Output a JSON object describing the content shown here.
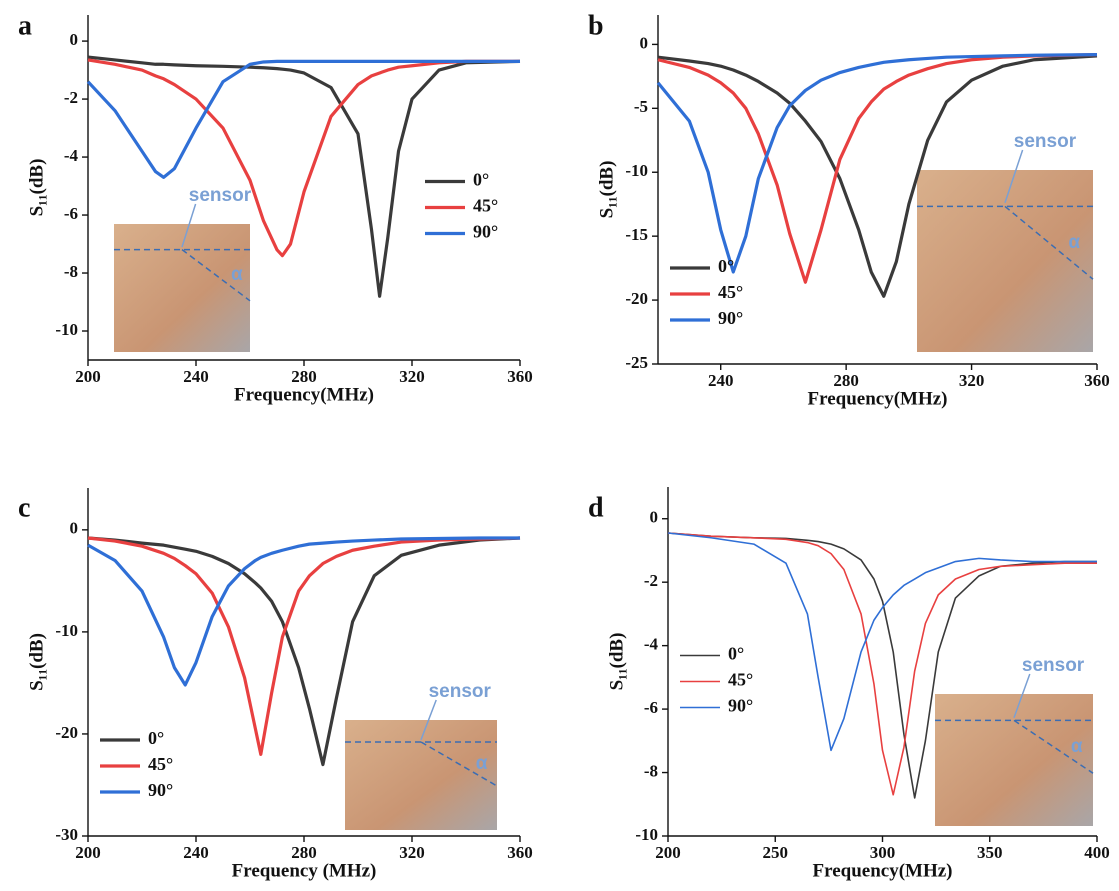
{
  "chart_data": [
    {
      "type": "line",
      "panel_label": "a",
      "x_label": "Frequency(MHz)",
      "y_label": "S₁₁(dB)",
      "legend": "center right",
      "annotations": [
        "sensor",
        "α"
      ],
      "xlim": [
        200,
        360
      ],
      "xticks": [
        200,
        240,
        280,
        320,
        360
      ],
      "ylim": [
        -11,
        0.9
      ],
      "yticks": [
        -10,
        -8,
        -6,
        -4,
        -2,
        0
      ],
      "x": [
        200,
        210,
        220,
        225,
        228,
        232,
        240,
        250,
        260,
        265,
        270,
        272,
        275,
        280,
        290,
        300,
        305,
        308,
        311,
        315,
        320,
        330,
        340,
        360
      ],
      "series": [
        {
          "name": "0°",
          "color": "#3a3a3a",
          "values": [
            -0.55,
            -0.65,
            -0.75,
            -0.8,
            -0.8,
            -0.82,
            -0.85,
            -0.87,
            -0.9,
            -0.92,
            -0.95,
            -0.97,
            -1.0,
            -1.1,
            -1.6,
            -3.2,
            -6.5,
            -8.8,
            -6.8,
            -3.8,
            -2.0,
            -1.0,
            -0.75,
            -0.7
          ]
        },
        {
          "name": "45°",
          "color": "#e84040",
          "values": [
            -0.65,
            -0.8,
            -1.0,
            -1.2,
            -1.3,
            -1.5,
            -2.0,
            -3.0,
            -4.8,
            -6.2,
            -7.2,
            -7.4,
            -7.0,
            -5.2,
            -2.6,
            -1.5,
            -1.2,
            -1.1,
            -1.0,
            -0.9,
            -0.85,
            -0.75,
            -0.7,
            -0.7
          ]
        },
        {
          "name": "90°",
          "color": "#2f6fd6",
          "values": [
            -1.4,
            -2.4,
            -3.8,
            -4.5,
            -4.7,
            -4.4,
            -3.0,
            -1.4,
            -0.8,
            -0.72,
            -0.7,
            -0.7,
            -0.7,
            -0.7,
            -0.7,
            -0.7,
            -0.7,
            -0.7,
            -0.7,
            -0.7,
            -0.7,
            -0.7,
            -0.7,
            -0.7
          ]
        }
      ]
    },
    {
      "type": "line",
      "panel_label": "b",
      "x_label": "Frequency(MHz)",
      "y_label": "S₁₁(dB)",
      "legend": "lower left",
      "annotations": [
        "sensor",
        "α"
      ],
      "xlim": [
        220,
        360
      ],
      "xticks": [
        240,
        280,
        320,
        360
      ],
      "ylim": [
        -25,
        2.3
      ],
      "yticks": [
        -25,
        -20,
        -15,
        -10,
        -5,
        0
      ],
      "x": [
        220,
        230,
        236,
        240,
        244,
        248,
        252,
        258,
        262,
        267,
        272,
        278,
        284,
        288,
        292,
        296,
        300,
        306,
        312,
        320,
        330,
        340,
        360
      ],
      "series": [
        {
          "name": "0°",
          "color": "#3a3a3a",
          "values": [
            -1.0,
            -1.3,
            -1.5,
            -1.7,
            -2.0,
            -2.4,
            -2.9,
            -3.8,
            -4.6,
            -6.0,
            -7.6,
            -10.5,
            -14.5,
            -17.8,
            -19.7,
            -17.0,
            -12.5,
            -7.5,
            -4.5,
            -2.8,
            -1.7,
            -1.2,
            -0.9
          ]
        },
        {
          "name": "45°",
          "color": "#e84040",
          "values": [
            -1.2,
            -1.8,
            -2.4,
            -3.0,
            -3.8,
            -5.0,
            -7.0,
            -11.0,
            -14.8,
            -18.6,
            -14.5,
            -9.0,
            -5.8,
            -4.5,
            -3.5,
            -2.9,
            -2.4,
            -1.9,
            -1.5,
            -1.2,
            -1.0,
            -0.9,
            -0.8
          ]
        },
        {
          "name": "90°",
          "color": "#2f6fd6",
          "values": [
            -3.0,
            -6.0,
            -10.0,
            -14.5,
            -17.8,
            -15.0,
            -10.5,
            -6.5,
            -4.8,
            -3.6,
            -2.8,
            -2.2,
            -1.8,
            -1.6,
            -1.4,
            -1.3,
            -1.2,
            -1.1,
            -1.0,
            -0.95,
            -0.9,
            -0.85,
            -0.8
          ]
        }
      ]
    },
    {
      "type": "line",
      "panel_label": "c",
      "x_label": "Frequency (MHz)",
      "y_label": "S₁₁(dB)",
      "legend": "lower left",
      "annotations": [
        "sensor",
        "α"
      ],
      "xlim": [
        200,
        360
      ],
      "xticks": [
        200,
        240,
        280,
        320,
        360
      ],
      "ylim": [
        -30,
        4.1
      ],
      "yticks": [
        -30,
        -20,
        -10,
        0
      ],
      "x": [
        200,
        210,
        220,
        228,
        232,
        236,
        240,
        246,
        252,
        258,
        262,
        264,
        268,
        272,
        278,
        282,
        287,
        292,
        298,
        306,
        316,
        330,
        345,
        360
      ],
      "series": [
        {
          "name": "0°",
          "color": "#3a3a3a",
          "values": [
            -0.8,
            -1.0,
            -1.3,
            -1.5,
            -1.7,
            -1.9,
            -2.1,
            -2.6,
            -3.3,
            -4.3,
            -5.2,
            -5.7,
            -7.0,
            -9.0,
            -13.5,
            -17.5,
            -23.0,
            -16.5,
            -9.0,
            -4.5,
            -2.5,
            -1.5,
            -1.0,
            -0.8
          ]
        },
        {
          "name": "45°",
          "color": "#e84040",
          "values": [
            -0.8,
            -1.1,
            -1.6,
            -2.3,
            -2.8,
            -3.5,
            -4.3,
            -6.2,
            -9.5,
            -14.5,
            -19.5,
            -22.0,
            -16.0,
            -10.5,
            -6.0,
            -4.5,
            -3.3,
            -2.6,
            -2.0,
            -1.6,
            -1.2,
            -1.0,
            -0.9,
            -0.8
          ]
        },
        {
          "name": "90°",
          "color": "#2f6fd6",
          "values": [
            -1.5,
            -3.0,
            -6.0,
            -10.5,
            -13.5,
            -15.2,
            -13.0,
            -8.5,
            -5.5,
            -3.8,
            -3.0,
            -2.7,
            -2.3,
            -2.0,
            -1.6,
            -1.4,
            -1.3,
            -1.2,
            -1.1,
            -1.0,
            -0.9,
            -0.85,
            -0.8,
            -0.8
          ]
        }
      ]
    },
    {
      "type": "line",
      "panel_label": "d",
      "x_label": "Frequency(MHz)",
      "y_label": "S₁₁(dB)",
      "legend": "center left",
      "annotations": [
        "sensor",
        "α"
      ],
      "xlim": [
        200,
        400
      ],
      "xticks": [
        200,
        250,
        300,
        350,
        400
      ],
      "ylim": [
        -10,
        1.0
      ],
      "yticks": [
        -10,
        -8,
        -6,
        -4,
        -2,
        0
      ],
      "x": [
        200,
        220,
        240,
        255,
        265,
        270,
        276,
        282,
        290,
        296,
        300,
        305,
        310,
        315,
        320,
        326,
        334,
        345,
        355,
        370,
        385,
        400
      ],
      "series": [
        {
          "name": "0°",
          "color": "#3a3a3a",
          "values": [
            -0.45,
            -0.55,
            -0.6,
            -0.62,
            -0.68,
            -0.72,
            -0.8,
            -0.95,
            -1.3,
            -1.9,
            -2.6,
            -4.2,
            -6.8,
            -8.8,
            -7.0,
            -4.2,
            -2.5,
            -1.8,
            -1.5,
            -1.4,
            -1.35,
            -1.35
          ]
        },
        {
          "name": "45°",
          "color": "#e84040",
          "values": [
            -0.45,
            -0.55,
            -0.6,
            -0.65,
            -0.75,
            -0.85,
            -1.1,
            -1.6,
            -3.0,
            -5.2,
            -7.3,
            -8.7,
            -7.2,
            -4.8,
            -3.3,
            -2.4,
            -1.9,
            -1.6,
            -1.5,
            -1.45,
            -1.4,
            -1.4
          ]
        },
        {
          "name": "90°",
          "color": "#2f6fd6",
          "values": [
            -0.45,
            -0.6,
            -0.8,
            -1.4,
            -3.0,
            -5.0,
            -7.3,
            -6.3,
            -4.2,
            -3.2,
            -2.8,
            -2.4,
            -2.1,
            -1.9,
            -1.7,
            -1.55,
            -1.35,
            -1.25,
            -1.3,
            -1.35,
            -1.35,
            -1.35
          ]
        }
      ]
    }
  ]
}
